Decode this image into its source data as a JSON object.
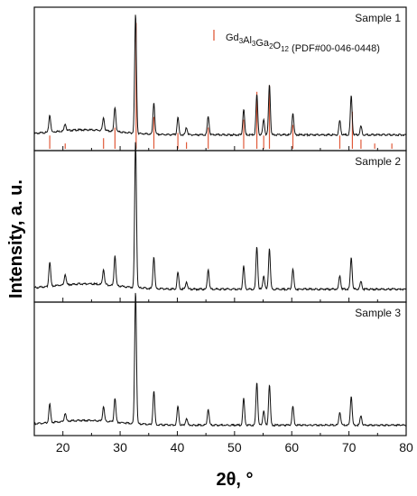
{
  "chart_data": {
    "type": "line",
    "xlabel": "2θ, °",
    "ylabel": "Intensity, a. u.",
    "xlim": [
      15,
      80
    ],
    "xticks": [
      20,
      30,
      40,
      50,
      60,
      70,
      80
    ],
    "grid": false,
    "panels": [
      {
        "label": "Sample 1",
        "legend": {
          "text": "Gd3Al3Ga2O12 (PDF#00-046-0448)",
          "placement": "top-right",
          "color": "#e05a3a"
        },
        "baseline": 0.2,
        "peaks": [
          {
            "x": 17.7,
            "h": 0.12
          },
          {
            "x": 20.4,
            "h": 0.05
          },
          {
            "x": 27.1,
            "h": 0.09
          },
          {
            "x": 29.1,
            "h": 0.17
          },
          {
            "x": 32.7,
            "h": 0.83
          },
          {
            "x": 35.9,
            "h": 0.22
          },
          {
            "x": 40.1,
            "h": 0.12
          },
          {
            "x": 41.6,
            "h": 0.05
          },
          {
            "x": 45.4,
            "h": 0.13
          },
          {
            "x": 51.6,
            "h": 0.18
          },
          {
            "x": 53.9,
            "h": 0.28
          },
          {
            "x": 55.1,
            "h": 0.11
          },
          {
            "x": 56.1,
            "h": 0.35
          },
          {
            "x": 60.2,
            "h": 0.15
          },
          {
            "x": 68.4,
            "h": 0.1
          },
          {
            "x": 70.4,
            "h": 0.27
          },
          {
            "x": 72.1,
            "h": 0.06
          }
        ]
      },
      {
        "label": "Sample 2",
        "baseline": 0.13,
        "peaks": [
          {
            "x": 17.7,
            "h": 0.16
          },
          {
            "x": 20.4,
            "h": 0.07
          },
          {
            "x": 27.1,
            "h": 0.1
          },
          {
            "x": 29.1,
            "h": 0.2
          },
          {
            "x": 32.7,
            "h": 0.97
          },
          {
            "x": 35.9,
            "h": 0.21
          },
          {
            "x": 40.1,
            "h": 0.11
          },
          {
            "x": 41.6,
            "h": 0.05
          },
          {
            "x": 45.4,
            "h": 0.13
          },
          {
            "x": 51.6,
            "h": 0.15
          },
          {
            "x": 53.9,
            "h": 0.28
          },
          {
            "x": 55.1,
            "h": 0.09
          },
          {
            "x": 56.1,
            "h": 0.27
          },
          {
            "x": 60.2,
            "h": 0.13
          },
          {
            "x": 68.4,
            "h": 0.09
          },
          {
            "x": 70.4,
            "h": 0.21
          },
          {
            "x": 72.1,
            "h": 0.05
          }
        ]
      },
      {
        "label": "Sample 3",
        "baseline": 0.11,
        "peaks": [
          {
            "x": 17.7,
            "h": 0.14
          },
          {
            "x": 20.4,
            "h": 0.06
          },
          {
            "x": 27.1,
            "h": 0.11
          },
          {
            "x": 29.1,
            "h": 0.18
          },
          {
            "x": 32.7,
            "h": 0.99
          },
          {
            "x": 35.9,
            "h": 0.25
          },
          {
            "x": 40.1,
            "h": 0.14
          },
          {
            "x": 41.6,
            "h": 0.05
          },
          {
            "x": 45.4,
            "h": 0.12
          },
          {
            "x": 51.6,
            "h": 0.2
          },
          {
            "x": 53.9,
            "h": 0.32
          },
          {
            "x": 55.1,
            "h": 0.11
          },
          {
            "x": 56.1,
            "h": 0.3
          },
          {
            "x": 60.2,
            "h": 0.14
          },
          {
            "x": 68.4,
            "h": 0.1
          },
          {
            "x": 70.4,
            "h": 0.22
          },
          {
            "x": 72.1,
            "h": 0.07
          }
        ]
      }
    ],
    "reference": {
      "name": "Gd3Al3Ga2O12 (PDF#00-046-0448)",
      "color": "#e05a3a",
      "lines": [
        {
          "x": 17.7,
          "h": 0.1
        },
        {
          "x": 20.4,
          "h": 0.04
        },
        {
          "x": 27.1,
          "h": 0.08
        },
        {
          "x": 29.1,
          "h": 0.16
        },
        {
          "x": 32.8,
          "h": 0.95
        },
        {
          "x": 35.9,
          "h": 0.24
        },
        {
          "x": 40.1,
          "h": 0.12
        },
        {
          "x": 41.6,
          "h": 0.05
        },
        {
          "x": 45.4,
          "h": 0.16
        },
        {
          "x": 51.6,
          "h": 0.22
        },
        {
          "x": 53.9,
          "h": 0.43
        },
        {
          "x": 55.1,
          "h": 0.1
        },
        {
          "x": 56.1,
          "h": 0.48
        },
        {
          "x": 60.2,
          "h": 0.18
        },
        {
          "x": 68.4,
          "h": 0.1
        },
        {
          "x": 70.6,
          "h": 0.28
        },
        {
          "x": 72.1,
          "h": 0.07
        },
        {
          "x": 74.5,
          "h": 0.04
        },
        {
          "x": 77.5,
          "h": 0.04
        }
      ]
    }
  }
}
